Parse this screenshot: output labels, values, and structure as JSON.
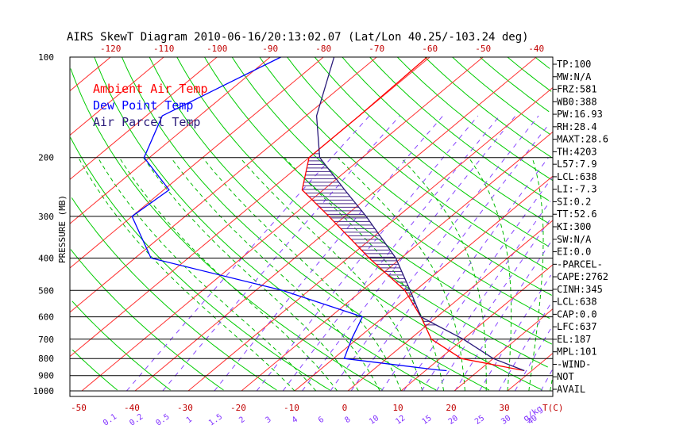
{
  "chart_data": {
    "type": "skew-t",
    "title": "AIRS SkewT Diagram 2010-06-16/20:13:02.07 (Lat/Lon 40.25/-103.24 deg)",
    "ylabel": "PRESSURE (MB)",
    "pressure_ticks": [
      100,
      200,
      300,
      400,
      500,
      600,
      700,
      800,
      900,
      1000
    ],
    "ylim": [
      1000,
      100
    ],
    "y_scale": "log",
    "grid": true,
    "top_temperature_ticks": [
      -120,
      -110,
      -100,
      -90,
      -80,
      -70,
      -60,
      -50,
      -40
    ],
    "bottom_temperature_ticks": [
      -50,
      -40,
      -30,
      -20,
      -10,
      0,
      10,
      20,
      30
    ],
    "bottom_temperature_unit": "T(C)",
    "mixing_ratio_ticks": [
      "0.1",
      "0.2",
      "0.5",
      "1",
      "1.5",
      "2",
      "3",
      "4",
      "6",
      "8",
      "10",
      "12",
      "15",
      "20",
      "25",
      "30",
      "40"
    ],
    "mixing_ratio_unit": "g/kg",
    "legend": [
      {
        "name": "Ambient Air Temp",
        "color": "#ff0000"
      },
      {
        "name": "Dew Point Temp",
        "color": "#0000ff"
      },
      {
        "name": "Air Parcel Temp",
        "color": "#2a1a7a"
      }
    ],
    "legend_position": "top-left",
    "series": [
      {
        "name": "Ambient Air Temp",
        "color": "#ff0000",
        "points": [
          {
            "p": 100,
            "t": -60.5
          },
          {
            "p": 150,
            "t": -60.0
          },
          {
            "p": 200,
            "t": -60.0
          },
          {
            "p": 250,
            "t": -54.0
          },
          {
            "p": 300,
            "t": -43.0
          },
          {
            "p": 400,
            "t": -26.0
          },
          {
            "p": 500,
            "t": -12.0
          },
          {
            "p": 600,
            "t": -3.0
          },
          {
            "p": 700,
            "t": 4.0
          },
          {
            "p": 800,
            "t": 14.0
          },
          {
            "p": 870,
            "t": 28.6
          }
        ]
      },
      {
        "name": "Dew Point Temp",
        "color": "#0000ff",
        "points": [
          {
            "p": 100,
            "t": -88.0
          },
          {
            "p": 150,
            "t": -97.0
          },
          {
            "p": 200,
            "t": -91.0
          },
          {
            "p": 250,
            "t": -79.0
          },
          {
            "p": 300,
            "t": -80.0
          },
          {
            "p": 400,
            "t": -67.0
          },
          {
            "p": 500,
            "t": -35.0
          },
          {
            "p": 600,
            "t": -14.0
          },
          {
            "p": 700,
            "t": -11.0
          },
          {
            "p": 800,
            "t": -8.0
          },
          {
            "p": 865,
            "t": 12.0
          },
          {
            "p": 870,
            "t": 14.0
          }
        ]
      },
      {
        "name": "Air Parcel Temp",
        "color": "#2a1a7a",
        "points": [
          {
            "p": 100,
            "t": -78.0
          },
          {
            "p": 150,
            "t": -68.0
          },
          {
            "p": 200,
            "t": -58.0
          },
          {
            "p": 250,
            "t": -46.0
          },
          {
            "p": 300,
            "t": -36.0
          },
          {
            "p": 400,
            "t": -21.0
          },
          {
            "p": 500,
            "t": -11.0
          },
          {
            "p": 600,
            "t": -3.0
          },
          {
            "p": 637,
            "t": 2.0
          },
          {
            "p": 700,
            "t": 10.0
          },
          {
            "p": 800,
            "t": 20.0
          },
          {
            "p": 870,
            "t": 28.6
          }
        ]
      }
    ],
    "shaded_region": "CAPE",
    "indices": [
      "TP:100",
      "MW:N/A",
      "FRZ:581",
      "WB0:388",
      "PW:16.93",
      "RH:28.4",
      "MAXT:28.6",
      "TH:4203",
      "L57:7.9",
      "LCL:638",
      "LI:-7.3",
      "SI:0.2",
      "TT:52.6",
      "KI:300",
      "SW:N/A",
      "EI:0.0",
      "-PARCEL-",
      "CAPE:2762",
      "CINH:345",
      "LCL:638",
      "CAP:0.0",
      "LFC:637",
      "EL:187",
      "MPL:101",
      "-WIND-",
      "NOT",
      "AVAIL"
    ],
    "colors": {
      "temperature": "#ff0000",
      "dewpoint": "#0000ff",
      "parcel": "#2a1a7a",
      "isotherm": "#ff3030",
      "dry_adiabat": "#00cc00",
      "moist_adiabat": "#00bb00",
      "mixing_ratio": "#8844ff",
      "isobar": "#000000",
      "cape_shading": "#4a2a8a"
    }
  }
}
